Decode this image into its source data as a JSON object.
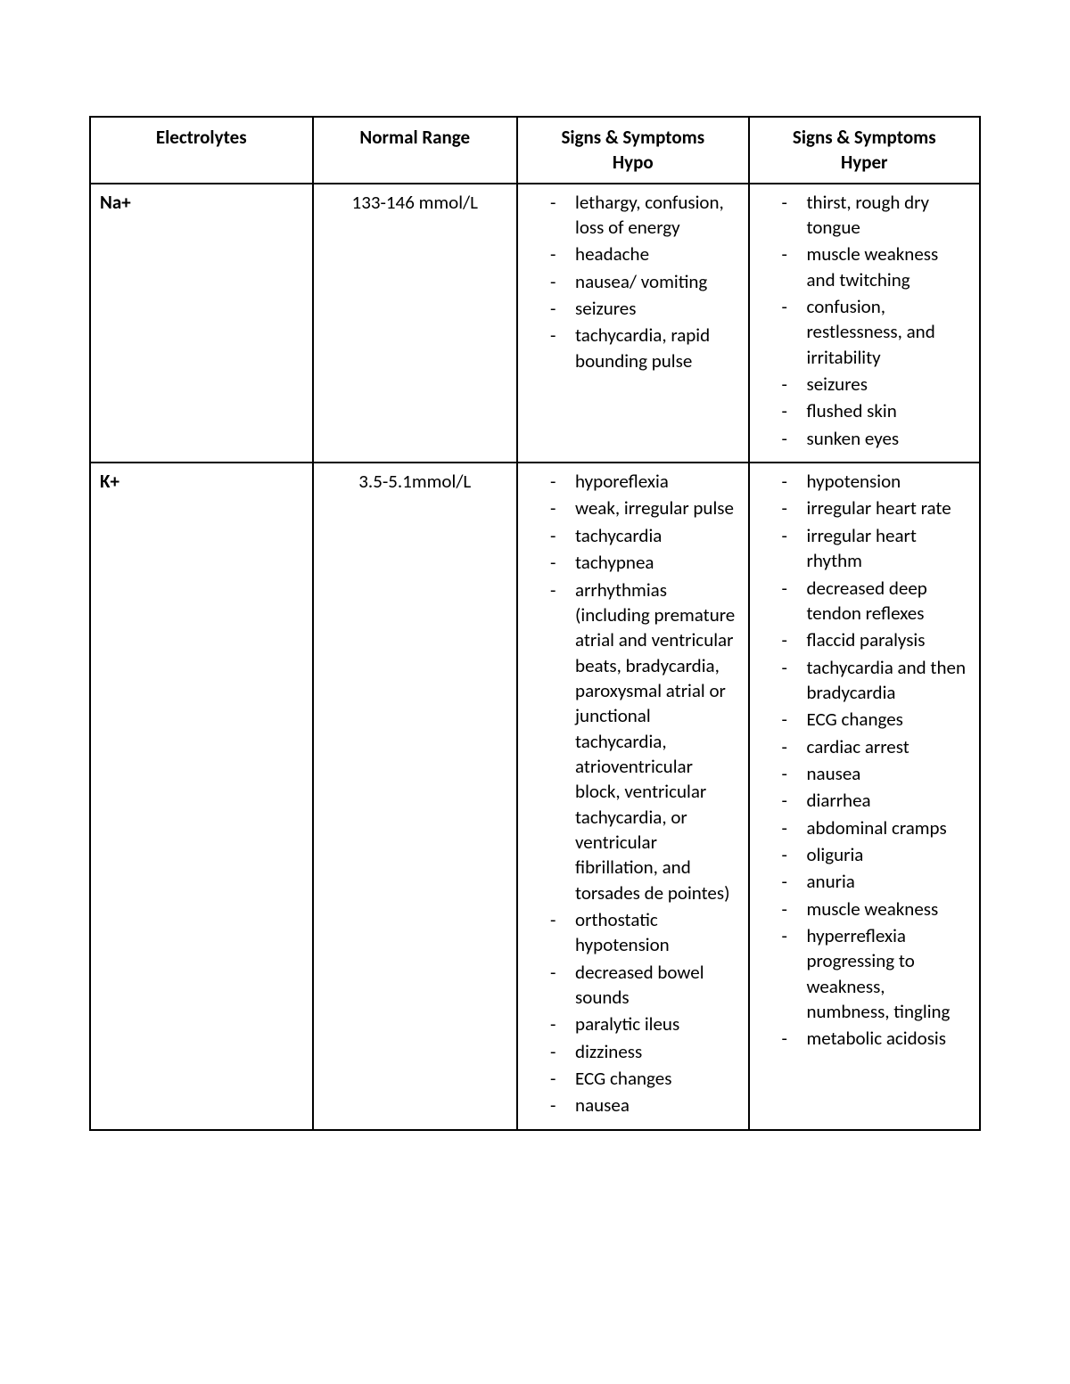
{
  "table": {
    "type": "table",
    "border_color": "#000000",
    "background_color": "#ffffff",
    "text_color": "#000000",
    "header_fontsize": 21,
    "cell_fontsize": 21,
    "font_family": "Calibri",
    "columns": [
      {
        "label": "Electrolytes",
        "width_pct": 25,
        "align": "left"
      },
      {
        "label": "Normal Range",
        "width_pct": 23,
        "align": "center"
      },
      {
        "label_line1": "Signs & Symptoms",
        "label_line2": "Hypo",
        "width_pct": 26,
        "align": "left"
      },
      {
        "label_line1": "Signs & Symptoms",
        "label_line2": "Hyper",
        "width_pct": 26,
        "align": "left"
      }
    ],
    "rows": [
      {
        "electrolyte": "Na+",
        "normal_range": "133-146 mmol/L",
        "hypo": [
          "lethargy, confusion, loss of energy",
          "headache",
          "nausea/ vomiting",
          "seizures",
          "tachycardia, rapid bounding pulse"
        ],
        "hyper": [
          "thirst, rough dry tongue",
          "muscle weakness and twitching",
          "confusion, restlessness, and irritability",
          "seizures",
          "flushed skin",
          "sunken eyes"
        ]
      },
      {
        "electrolyte": "K+",
        "normal_range": "3.5-5.1mmol/L",
        "hypo": [
          "hyporeflexia",
          "weak, irregular pulse",
          "tachycardia",
          "tachypnea",
          "arrhythmias (including premature atrial and ventricular beats, bradycardia, paroxysmal atrial or junctional tachycardia, atrioventricular block, ventricular tachycardia, or ventricular fibrillation, and torsades de pointes)",
          "orthostatic hypotension",
          "decreased bowel sounds",
          "paralytic ileus",
          "dizziness",
          "ECG changes",
          "nausea"
        ],
        "hyper": [
          "hypotension",
          "irregular heart rate",
          "irregular heart rhythm",
          "decreased deep tendon reflexes",
          "flaccid paralysis",
          "tachycardia and then bradycardia",
          "ECG changes",
          "cardiac arrest",
          "nausea",
          "diarrhea",
          "abdominal cramps",
          "oliguria",
          "anuria",
          "muscle weakness",
          "hyperreflexia progressing to weakness, numbness, tingling",
          "metabolic acidosis"
        ]
      }
    ]
  }
}
